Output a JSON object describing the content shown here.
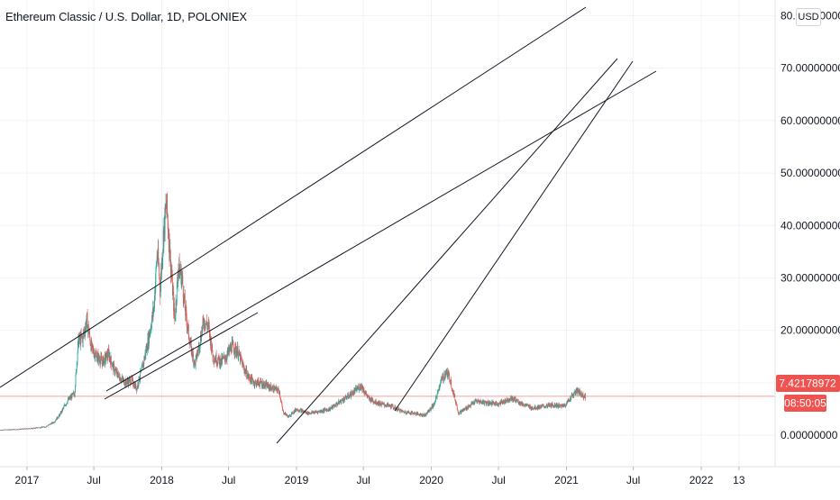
{
  "header": {
    "title": "Ethereum Classic / U.S. Dollar, 1D, POLONIEX",
    "currency_button": "USD"
  },
  "price_tag": {
    "last_price": "7.42178972",
    "countdown": "08:50:05",
    "color": "#ef5350"
  },
  "chart_data": {
    "type": "candlestick",
    "symbol": "ETC/USD",
    "interval": "1D",
    "exchange": "POLONIEX",
    "x_tick_labels": [
      "2017",
      "Jul",
      "2018",
      "Jul",
      "2019",
      "Jul",
      "2020",
      "Jul",
      "2021",
      "Jul",
      "2022",
      "13"
    ],
    "x_tick_dates": [
      "2017-01-01",
      "2017-07-01",
      "2018-01-01",
      "2018-07-01",
      "2019-01-01",
      "2019-07-01",
      "2020-01-01",
      "2020-07-01",
      "2021-01-01",
      "2021-07-01",
      "2022-01-01",
      "2022-04-13"
    ],
    "x_range": [
      "2016-10-20",
      "2022-07-20"
    ],
    "y_tick_labels": [
      "0.00000000",
      "10.00000000",
      "20.00000000",
      "30.00000000",
      "40.00000000",
      "50.00000000",
      "60.00000000",
      "70.00000000",
      "80.00000000"
    ],
    "y_ticks": [
      0,
      10,
      20,
      30,
      40,
      50,
      60,
      70,
      80
    ],
    "ylim": [
      -6,
      83
    ],
    "grid": true,
    "price_line": 7.42,
    "up_color": "#26a69a",
    "down_color": "#ef5350",
    "price_path": [
      [
        "2016-10-20",
        1.0
      ],
      [
        "2016-12-01",
        1.1
      ],
      [
        "2017-01-15",
        1.3
      ],
      [
        "2017-02-20",
        1.6
      ],
      [
        "2017-03-15",
        2.5
      ],
      [
        "2017-04-01",
        4.0
      ],
      [
        "2017-04-20",
        6.5
      ],
      [
        "2017-05-10",
        8.0
      ],
      [
        "2017-05-20",
        18.0
      ],
      [
        "2017-06-01",
        18.5
      ],
      [
        "2017-06-12",
        22.0
      ],
      [
        "2017-06-25",
        16.5
      ],
      [
        "2017-07-10",
        15.0
      ],
      [
        "2017-07-25",
        14.0
      ],
      [
        "2017-08-10",
        15.5
      ],
      [
        "2017-08-25",
        12.5
      ],
      [
        "2017-09-10",
        11.0
      ],
      [
        "2017-09-25",
        10.0
      ],
      [
        "2017-10-10",
        10.5
      ],
      [
        "2017-10-25",
        9.0
      ],
      [
        "2017-11-10",
        13.0
      ],
      [
        "2017-11-25",
        18.0
      ],
      [
        "2017-12-10",
        24.0
      ],
      [
        "2017-12-20",
        35.0
      ],
      [
        "2017-12-28",
        28.0
      ],
      [
        "2018-01-05",
        38.0
      ],
      [
        "2018-01-14",
        44.0
      ],
      [
        "2018-01-24",
        34.0
      ],
      [
        "2018-02-05",
        22.0
      ],
      [
        "2018-02-15",
        32.0
      ],
      [
        "2018-02-25",
        30.0
      ],
      [
        "2018-03-05",
        24.0
      ],
      [
        "2018-03-20",
        17.0
      ],
      [
        "2018-04-01",
        13.5
      ],
      [
        "2018-04-12",
        17.0
      ],
      [
        "2018-04-25",
        22.0
      ],
      [
        "2018-05-08",
        20.5
      ],
      [
        "2018-05-20",
        15.0
      ],
      [
        "2018-06-10",
        14.0
      ],
      [
        "2018-06-25",
        15.0
      ],
      [
        "2018-07-10",
        17.0
      ],
      [
        "2018-07-25",
        16.0
      ],
      [
        "2018-08-10",
        13.0
      ],
      [
        "2018-08-25",
        11.0
      ],
      [
        "2018-09-10",
        10.0
      ],
      [
        "2018-09-25",
        10.0
      ],
      [
        "2018-10-10",
        9.5
      ],
      [
        "2018-10-25",
        9.0
      ],
      [
        "2018-11-15",
        8.5
      ],
      [
        "2018-11-25",
        4.5
      ],
      [
        "2018-12-10",
        3.5
      ],
      [
        "2019-01-01",
        5.0
      ],
      [
        "2019-02-01",
        4.2
      ],
      [
        "2019-03-01",
        4.5
      ],
      [
        "2019-04-01",
        5.0
      ],
      [
        "2019-05-01",
        6.5
      ],
      [
        "2019-06-01",
        8.0
      ],
      [
        "2019-06-25",
        9.5
      ],
      [
        "2019-07-15",
        7.0
      ],
      [
        "2019-08-15",
        6.0
      ],
      [
        "2019-09-15",
        5.5
      ],
      [
        "2019-10-15",
        4.5
      ],
      [
        "2019-11-15",
        4.2
      ],
      [
        "2019-12-15",
        3.8
      ],
      [
        "2020-01-10",
        6.0
      ],
      [
        "2020-01-25",
        10.0
      ],
      [
        "2020-02-10",
        12.0
      ],
      [
        "2020-02-20",
        11.0
      ],
      [
        "2020-03-01",
        8.0
      ],
      [
        "2020-03-15",
        4.2
      ],
      [
        "2020-04-01",
        5.0
      ],
      [
        "2020-05-01",
        6.5
      ],
      [
        "2020-06-01",
        6.2
      ],
      [
        "2020-07-01",
        6.0
      ],
      [
        "2020-08-01",
        7.0
      ],
      [
        "2020-08-15",
        6.8
      ],
      [
        "2020-09-01",
        6.0
      ],
      [
        "2020-10-01",
        5.2
      ],
      [
        "2020-11-01",
        5.5
      ],
      [
        "2020-12-01",
        5.8
      ],
      [
        "2020-12-20",
        5.5
      ],
      [
        "2021-01-01",
        6.0
      ],
      [
        "2021-01-15",
        7.5
      ],
      [
        "2021-02-01",
        8.5
      ],
      [
        "2021-02-10",
        7.8
      ],
      [
        "2021-02-21",
        7.42
      ]
    ]
  }
}
